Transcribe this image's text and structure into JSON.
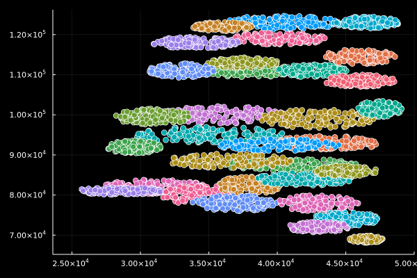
{
  "chart_data": {
    "type": "scatter",
    "title": "",
    "xlabel": "",
    "ylabel": "",
    "xlim": [
      23600,
      50000
    ],
    "ylim": [
      65200,
      126200
    ],
    "grid": true,
    "legend": "none",
    "background": "#000000",
    "marker_edge_color": "#ffffff",
    "x_ticks": [
      {
        "value": 25000,
        "mantissa": "2.50×10",
        "exp": "4"
      },
      {
        "value": 30000,
        "mantissa": "3.00×10",
        "exp": "4"
      },
      {
        "value": 35000,
        "mantissa": "3.50×10",
        "exp": "4"
      },
      {
        "value": 40000,
        "mantissa": "4.00×10",
        "exp": "4"
      },
      {
        "value": 45000,
        "mantissa": "4.50×10",
        "exp": "4"
      },
      {
        "value": 50000,
        "mantissa": "5.00×10",
        "exp": "4"
      }
    ],
    "y_ticks": [
      {
        "value": 70000,
        "mantissa": "7.00×10",
        "exp": "4"
      },
      {
        "value": 80000,
        "mantissa": "8.00×10",
        "exp": "4"
      },
      {
        "value": 90000,
        "mantissa": "9.00×10",
        "exp": "4"
      },
      {
        "value": 100000,
        "mantissa": "1.00×10",
        "exp": "5"
      },
      {
        "value": 110000,
        "mantissa": "1.10×10",
        "exp": "5"
      },
      {
        "value": 120000,
        "mantissa": "1.20×10",
        "exp": "5"
      }
    ],
    "series": [
      {
        "color": "#009af9",
        "cluster": {
          "cx": 40500,
          "cy": 123000,
          "rx": 4200,
          "ry": 1800
        }
      },
      {
        "color": "#e26f46",
        "cluster": {
          "cx": 46000,
          "cy": 114500,
          "rx": 2600,
          "ry": 1800
        }
      },
      {
        "color": "#3da44d",
        "cluster": {
          "cx": 38000,
          "cy": 111000,
          "rx": 3400,
          "ry": 1600
        }
      },
      {
        "color": "#c271d2",
        "cluster": {
          "cx": 36000,
          "cy": 100000,
          "rx": 4500,
          "ry": 2200
        }
      },
      {
        "color": "#ac8d18",
        "cluster": {
          "cx": 43000,
          "cy": 99000,
          "rx": 4200,
          "ry": 2400
        }
      },
      {
        "color": "#00a9ad",
        "cluster": {
          "cx": 35000,
          "cy": 95000,
          "rx": 5500,
          "ry": 2000
        }
      },
      {
        "color": "#ed5e93",
        "cluster": {
          "cx": 40000,
          "cy": 119000,
          "rx": 3600,
          "ry": 1500
        }
      },
      {
        "color": "#c68225",
        "cluster": {
          "cx": 36000,
          "cy": 122000,
          "rx": 2200,
          "ry": 1100
        }
      },
      {
        "color": "#00a98d",
        "cluster": {
          "cx": 42500,
          "cy": 111000,
          "rx": 2600,
          "ry": 1600
        }
      },
      {
        "color": "#8e971d",
        "cluster": {
          "cx": 37500,
          "cy": 113000,
          "rx": 2600,
          "ry": 1300
        }
      },
      {
        "color": "#00a8cb",
        "cluster": {
          "cx": 46500,
          "cy": 123000,
          "rx": 2400,
          "ry": 1500
        }
      },
      {
        "color": "#9b7fe9",
        "cluster": {
          "cx": 34000,
          "cy": 118000,
          "rx": 3200,
          "ry": 1400
        }
      },
      {
        "color": "#618df6",
        "cluster": {
          "cx": 33000,
          "cy": 111000,
          "rx": 2400,
          "ry": 1800
        }
      },
      {
        "color": "#f05f73",
        "cluster": {
          "cx": 46000,
          "cy": 108500,
          "rx": 2600,
          "ry": 1500
        }
      },
      {
        "color": "#dd64b5",
        "cluster": {
          "cx": 31000,
          "cy": 82000,
          "rx": 3800,
          "ry": 1800
        }
      },
      {
        "color": "#6b9e32",
        "cluster": {
          "cx": 31000,
          "cy": 99500,
          "rx": 2800,
          "ry": 2000
        }
      },
      {
        "color": "#e26f46",
        "cluster": {
          "cx": 43500,
          "cy": 93000,
          "rx": 4200,
          "ry": 1700
        }
      },
      {
        "color": "#3da44d",
        "cluster": {
          "cx": 41000,
          "cy": 87500,
          "rx": 4800,
          "ry": 1600
        }
      },
      {
        "color": "#ac8d18",
        "cluster": {
          "cx": 36500,
          "cy": 88500,
          "rx": 4500,
          "ry": 1800
        }
      },
      {
        "color": "#009af9",
        "cluster": {
          "cx": 40000,
          "cy": 92500,
          "rx": 4500,
          "ry": 1500
        }
      },
      {
        "color": "#9b7fe9",
        "cluster": {
          "cx": 28500,
          "cy": 81000,
          "rx": 3200,
          "ry": 900
        }
      },
      {
        "color": "#ed5e93",
        "cluster": {
          "cx": 34500,
          "cy": 80000,
          "rx": 3000,
          "ry": 2400
        }
      },
      {
        "color": "#c68225",
        "cluster": {
          "cx": 38000,
          "cy": 82500,
          "rx": 2400,
          "ry": 2200
        }
      },
      {
        "color": "#618df6",
        "cluster": {
          "cx": 37000,
          "cy": 78000,
          "rx": 3200,
          "ry": 2000
        }
      },
      {
        "color": "#00a9ad",
        "cluster": {
          "cx": 42000,
          "cy": 84000,
          "rx": 3600,
          "ry": 1600
        }
      },
      {
        "color": "#dd64b5",
        "cluster": {
          "cx": 43000,
          "cy": 78000,
          "rx": 3000,
          "ry": 2000
        }
      },
      {
        "color": "#8e971d",
        "cluster": {
          "cx": 45000,
          "cy": 86000,
          "rx": 2400,
          "ry": 1300
        }
      },
      {
        "color": "#00a8cb",
        "cluster": {
          "cx": 45000,
          "cy": 74000,
          "rx": 2400,
          "ry": 1800
        }
      },
      {
        "color": "#c271d2",
        "cluster": {
          "cx": 43000,
          "cy": 72000,
          "rx": 2200,
          "ry": 1300
        }
      },
      {
        "color": "#ac8d18",
        "cluster": {
          "cx": 46500,
          "cy": 69000,
          "rx": 1200,
          "ry": 900
        }
      },
      {
        "color": "#3da44d",
        "cluster": {
          "cx": 29500,
          "cy": 92000,
          "rx": 2000,
          "ry": 1600
        }
      },
      {
        "color": "#00a98d",
        "cluster": {
          "cx": 47500,
          "cy": 101500,
          "rx": 1600,
          "ry": 2000
        }
      }
    ]
  }
}
